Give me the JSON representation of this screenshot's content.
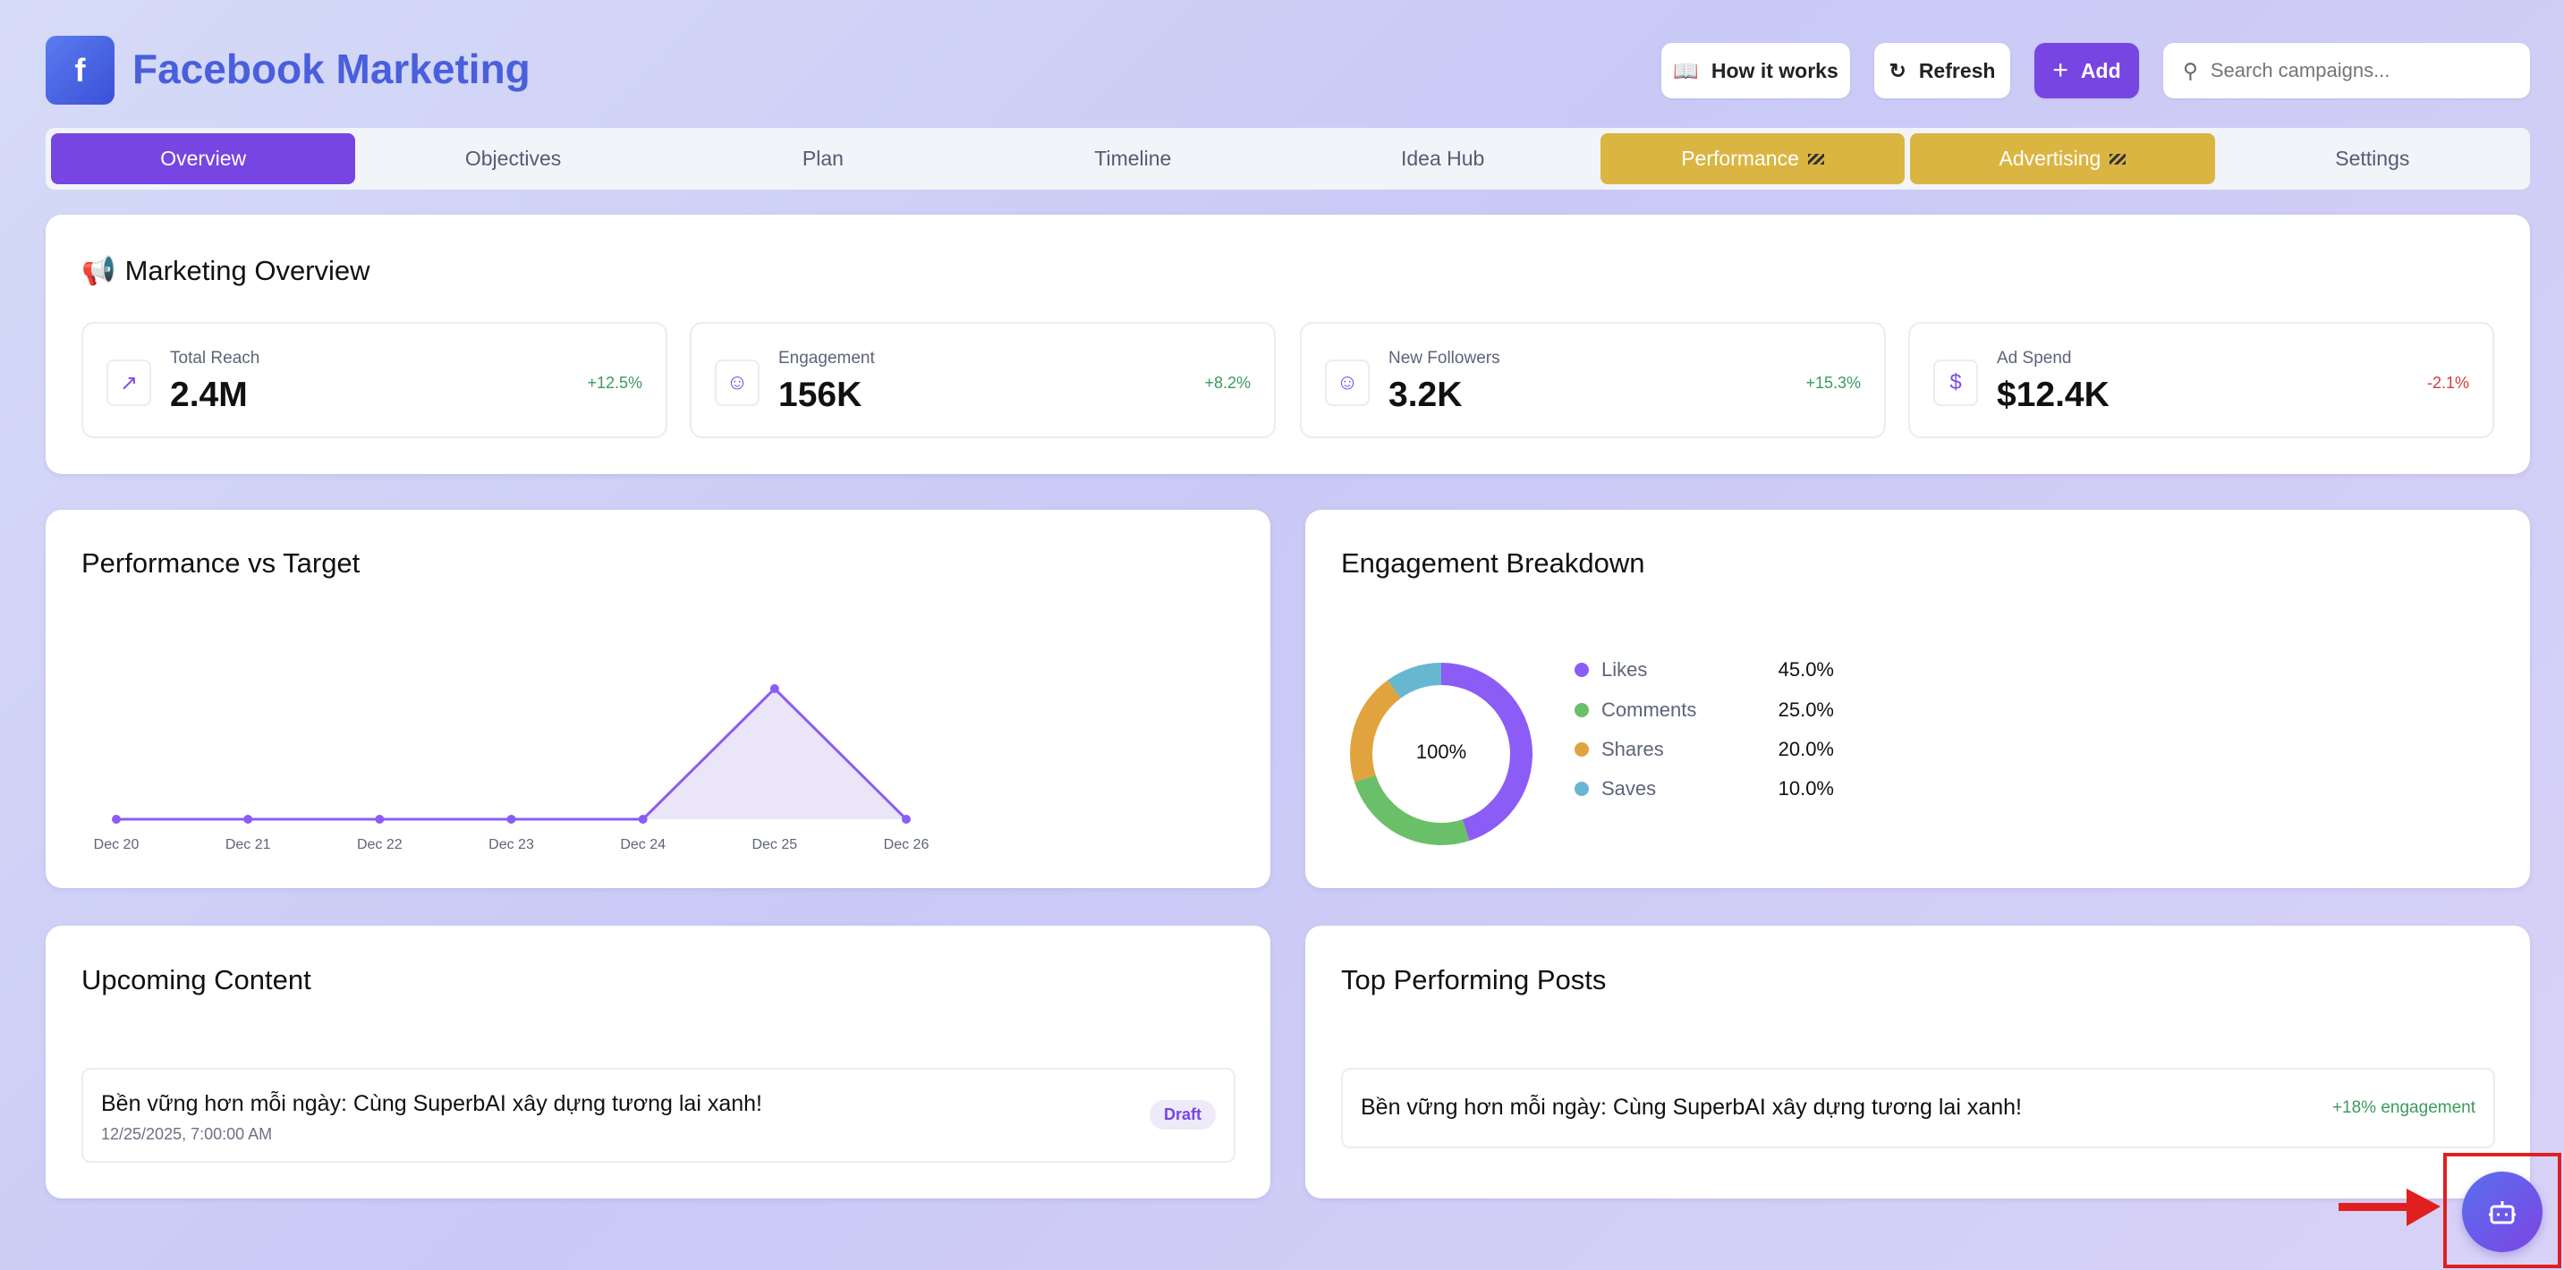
{
  "header": {
    "title": "Facebook Marketing",
    "logo_icon": "facebook-icon",
    "how_it_works": "How it works",
    "refresh": "Refresh",
    "add": "Add",
    "search_placeholder": "Search campaigns..."
  },
  "tabs": [
    {
      "label": "Overview",
      "state": "active"
    },
    {
      "label": "Objectives"
    },
    {
      "label": "Plan"
    },
    {
      "label": "Timeline"
    },
    {
      "label": "Idea Hub"
    },
    {
      "label": "Performance",
      "state": "beta"
    },
    {
      "label": "Advertising",
      "state": "beta"
    },
    {
      "label": "Settings"
    }
  ],
  "overview": {
    "title": "Marketing Overview",
    "stats": [
      {
        "label": "Total Reach",
        "value": "2.4M",
        "change": "+12.5%",
        "trend": "up",
        "icon": "trending-up-icon"
      },
      {
        "label": "Engagement",
        "value": "156K",
        "change": "+8.2%",
        "trend": "up",
        "icon": "users-icon"
      },
      {
        "label": "New Followers",
        "value": "3.2K",
        "change": "+15.3%",
        "trend": "up",
        "icon": "users-icon"
      },
      {
        "label": "Ad Spend",
        "value": "$12.4K",
        "change": "-2.1%",
        "trend": "down",
        "icon": "dollar-icon"
      }
    ]
  },
  "colors": {
    "accent": "#7745e2",
    "up": "#3c9a5c",
    "down": "#d33a3a",
    "beta": "#dbb542"
  },
  "performance": {
    "title": "Performance vs Target"
  },
  "engagement": {
    "title": "Engagement Breakdown",
    "center": "100%"
  },
  "chart_data": [
    {
      "type": "area",
      "x": [
        "Dec 20",
        "Dec 21",
        "Dec 22",
        "Dec 23",
        "Dec 24",
        "Dec 25",
        "Dec 26"
      ],
      "values": [
        0,
        0,
        0,
        0,
        0,
        1,
        0
      ],
      "color": "#8b5cf6",
      "grid": false
    },
    {
      "type": "pie",
      "categories": [
        "Likes",
        "Comments",
        "Shares",
        "Saves"
      ],
      "values": [
        45,
        25,
        20,
        10
      ],
      "labels": [
        "45.0%",
        "25.0%",
        "20.0%",
        "10.0%"
      ],
      "colors": [
        "#8b5cf6",
        "#6abf69",
        "#e0a33e",
        "#67b7d1"
      ],
      "center_label": "100%",
      "legend": "right"
    }
  ],
  "upcoming": {
    "title": "Upcoming Content",
    "items": [
      {
        "title": "Bền vững hơn mỗi ngày: Cùng SuperbAI xây dựng tương lai xanh!",
        "date": "12/25/2025, 7:00:00 AM",
        "status": "Draft"
      }
    ]
  },
  "top_posts": {
    "title": "Top Performing Posts",
    "items": [
      {
        "title": "Bền vững hơn mỗi ngày: Cùng SuperbAI xây dựng tương lai xanh!",
        "metric": "+18% engagement"
      }
    ]
  },
  "assistant": {
    "icon": "bot-icon"
  }
}
